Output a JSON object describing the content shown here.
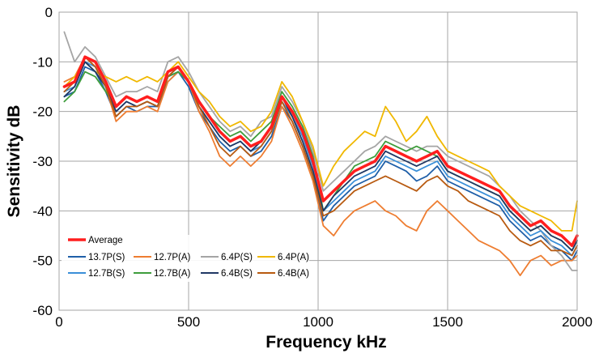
{
  "chart_data": {
    "type": "line",
    "title": "",
    "xlabel": "Frequency  kHz",
    "ylabel": "Sensitivity  dB",
    "xlim": [
      0,
      2000
    ],
    "ylim": [
      -60,
      0
    ],
    "xticks": [
      0,
      500,
      1000,
      1500,
      2000
    ],
    "yticks": [
      0,
      -10,
      -20,
      -30,
      -40,
      -50,
      -60
    ],
    "grid": true,
    "legend_position": "bottom-left",
    "x": [
      20,
      60,
      100,
      140,
      180,
      220,
      260,
      300,
      340,
      380,
      420,
      460,
      500,
      540,
      580,
      620,
      660,
      700,
      740,
      780,
      820,
      860,
      900,
      940,
      980,
      1020,
      1060,
      1100,
      1140,
      1180,
      1220,
      1260,
      1300,
      1340,
      1380,
      1420,
      1460,
      1500,
      1540,
      1580,
      1620,
      1660,
      1700,
      1740,
      1780,
      1820,
      1860,
      1900,
      1940,
      1980,
      2000
    ],
    "series": [
      {
        "name": "Average",
        "color": "#ff1e1e",
        "values": [
          -15,
          -14,
          -9,
          -10,
          -14,
          -19,
          -17,
          -18,
          -17,
          -18,
          -12,
          -11,
          -14,
          -18,
          -21,
          -24,
          -26,
          -25,
          -27,
          -26,
          -23,
          -17,
          -20,
          -24,
          -30,
          -38,
          -36,
          -34,
          -32,
          -31,
          -30,
          -27,
          -28,
          -29,
          -30,
          -29,
          -28,
          -31,
          -32,
          -33,
          -34,
          -35,
          -36,
          -39,
          -41,
          -43,
          -42,
          -44,
          -45,
          -47,
          -45
        ]
      },
      {
        "name": "13.7P(S)",
        "color": "#1f5fa8",
        "values": [
          -17,
          -16,
          -11,
          -12,
          -16,
          -21,
          -19,
          -20,
          -19,
          -19,
          -14,
          -12,
          -15,
          -20,
          -23,
          -26,
          -28,
          -27,
          -29,
          -28,
          -25,
          -19,
          -22,
          -27,
          -33,
          -42,
          -39,
          -37,
          -35,
          -34,
          -33,
          -30,
          -31,
          -32,
          -34,
          -33,
          -31,
          -34,
          -35,
          -36,
          -37,
          -38,
          -39,
          -42,
          -44,
          -46,
          -45,
          -47,
          -48,
          -50,
          -48
        ]
      },
      {
        "name": "12.7P(A)",
        "color": "#ee7d31",
        "values": [
          -14,
          -13,
          -9,
          -11,
          -15,
          -22,
          -20,
          -20,
          -19,
          -20,
          -14,
          -12,
          -14,
          -20,
          -24,
          -29,
          -31,
          -29,
          -31,
          -29,
          -26,
          -19,
          -23,
          -28,
          -34,
          -43,
          -45,
          -42,
          -40,
          -39,
          -38,
          -40,
          -41,
          -43,
          -44,
          -40,
          -38,
          -40,
          -42,
          -44,
          -46,
          -47,
          -48,
          -50,
          -53,
          -50,
          -49,
          -51,
          -50,
          -50,
          -49
        ]
      },
      {
        "name": "6.4P(S)",
        "color": "#a5a5a5",
        "values": [
          -4,
          -10,
          -7,
          -9,
          -13,
          -17,
          -16,
          -16,
          -15,
          -16,
          -10,
          -9,
          -12,
          -16,
          -19,
          -22,
          -24,
          -23,
          -25,
          -22,
          -21,
          -15,
          -18,
          -22,
          -28,
          -36,
          -34,
          -32,
          -30,
          -28,
          -27,
          -25,
          -26,
          -27,
          -28,
          -27,
          -27,
          -29,
          -30,
          -31,
          -32,
          -33,
          -35,
          -37,
          -40,
          -42,
          -44,
          -47,
          -49,
          -52,
          -52
        ]
      },
      {
        "name": "6.4P(A)",
        "color": "#f0b800",
        "values": [
          -15,
          -13,
          -10,
          -12,
          -13,
          -14,
          -13,
          -14,
          -13,
          -14,
          -12,
          -10,
          -13,
          -16,
          -18,
          -21,
          -23,
          -22,
          -24,
          -23,
          -20,
          -14,
          -17,
          -22,
          -27,
          -35,
          -31,
          -28,
          -26,
          -24,
          -25,
          -19,
          -22,
          -26,
          -24,
          -21,
          -25,
          -28,
          -29,
          -30,
          -31,
          -32,
          -35,
          -37,
          -39,
          -40,
          -41,
          -42,
          -44,
          -44,
          -38
        ]
      },
      {
        "name": "12.7B(S)",
        "color": "#3a8fd8",
        "values": [
          -16,
          -15,
          -10,
          -11,
          -15,
          -20,
          -18,
          -19,
          -18,
          -19,
          -13,
          -12,
          -14,
          -19,
          -22,
          -25,
          -27,
          -26,
          -28,
          -27,
          -24,
          -18,
          -21,
          -25,
          -31,
          -40,
          -38,
          -36,
          -34,
          -33,
          -32,
          -29,
          -30,
          -31,
          -32,
          -31,
          -30,
          -33,
          -34,
          -35,
          -36,
          -37,
          -38,
          -41,
          -43,
          -45,
          -44,
          -46,
          -47,
          -49,
          -47
        ]
      },
      {
        "name": "12.7B(A)",
        "color": "#3e9d3c",
        "values": [
          -18,
          -16,
          -12,
          -13,
          -16,
          -19,
          -17,
          -18,
          -17,
          -18,
          -13,
          -12,
          -14,
          -18,
          -21,
          -23,
          -25,
          -24,
          -26,
          -24,
          -22,
          -16,
          -19,
          -23,
          -29,
          -40,
          -37,
          -34,
          -31,
          -30,
          -29,
          -26,
          -27,
          -28,
          -27,
          -28,
          -29,
          -32,
          -33,
          -34,
          -35,
          -36,
          -37,
          -40,
          -42,
          -44,
          -43,
          -45,
          -46,
          -48,
          -46
        ]
      },
      {
        "name": "6.4B(S)",
        "color": "#203864",
        "values": [
          -17,
          -15,
          -10,
          -12,
          -15,
          -20,
          -18,
          -19,
          -18,
          -19,
          -13,
          -11,
          -14,
          -19,
          -22,
          -25,
          -27,
          -26,
          -28,
          -26,
          -23,
          -17,
          -21,
          -26,
          -32,
          -40,
          -37,
          -35,
          -33,
          -32,
          -31,
          -28,
          -29,
          -30,
          -31,
          -30,
          -29,
          -32,
          -33,
          -34,
          -35,
          -36,
          -37,
          -40,
          -42,
          -44,
          -43,
          -45,
          -46,
          -48,
          -46
        ]
      },
      {
        "name": "6.4B(A)",
        "color": "#b85a10",
        "values": [
          -16,
          -14,
          -9,
          -11,
          -15,
          -21,
          -19,
          -19,
          -18,
          -19,
          -13,
          -11,
          -14,
          -19,
          -23,
          -27,
          -29,
          -27,
          -29,
          -27,
          -24,
          -18,
          -22,
          -27,
          -33,
          -41,
          -40,
          -38,
          -36,
          -35,
          -34,
          -33,
          -34,
          -35,
          -36,
          -34,
          -33,
          -35,
          -36,
          -38,
          -39,
          -40,
          -41,
          -44,
          -46,
          -47,
          -46,
          -48,
          -48,
          -49,
          -47
        ]
      }
    ]
  }
}
